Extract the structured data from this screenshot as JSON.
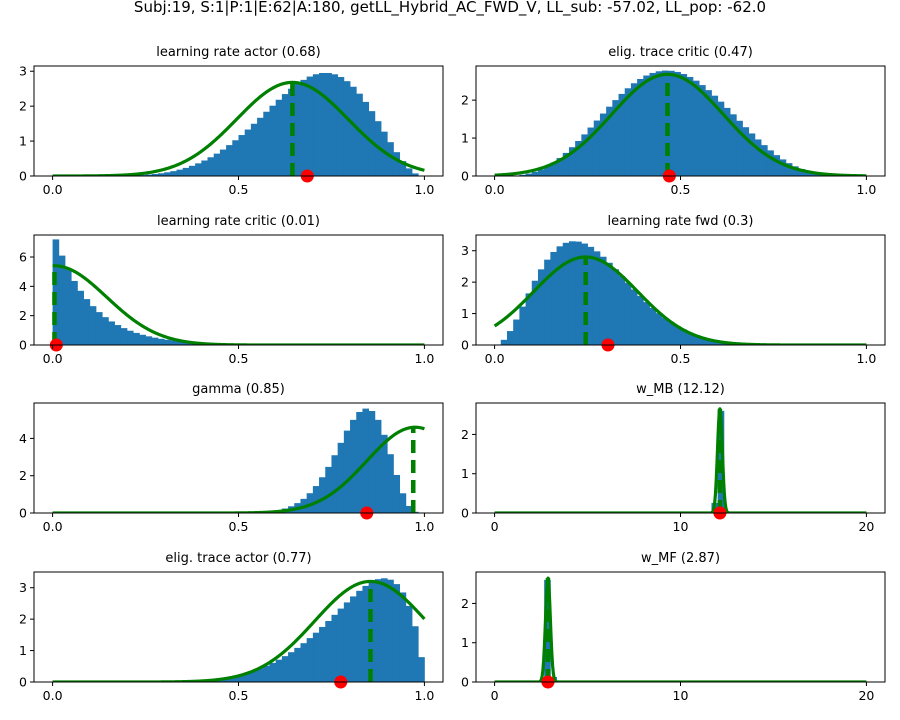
{
  "figure": {
    "title": "Subj:19, S:1|P:1|E:62|A:180, getLL_Hybrid_AC_FWD_V, LL_sub: -57.02, LL_pop: -62.0"
  },
  "colors": {
    "hist": "#1f77b4",
    "curve": "#008000",
    "mle": "#ff0000"
  },
  "chart_data": [
    {
      "type": "bar",
      "title": "learning rate actor (0.68)",
      "xlim": [
        -0.05,
        1.05
      ],
      "ylim": [
        0,
        3.15
      ],
      "xticks": [
        0,
        0.5,
        1
      ],
      "xtick_labels": [
        "0.0",
        "0.5",
        "1.0"
      ],
      "yticks": [
        0,
        1,
        2,
        3
      ],
      "ytick_labels": [
        "0",
        "1",
        "2",
        "3"
      ],
      "hist": {
        "range": [
          0,
          1
        ],
        "bins": 60,
        "shape": "beta",
        "mean": 0.69,
        "sd": 0.135,
        "peak": 2.95
      },
      "curve": {
        "shape": "gauss",
        "mu": 0.645,
        "sigma": 0.15,
        "peak": 2.68,
        "domain": [
          0,
          1
        ]
      },
      "vline": {
        "x": 0.645,
        "y": 2.68
      },
      "point": {
        "x": 0.685,
        "y": 0
      }
    },
    {
      "type": "bar",
      "title": "elig. trace critic (0.47)",
      "xlim": [
        -0.05,
        1.05
      ],
      "ylim": [
        0,
        2.9
      ],
      "xticks": [
        0,
        0.5,
        1
      ],
      "xtick_labels": [
        "0.0",
        "0.5",
        "1.0"
      ],
      "yticks": [
        0,
        1,
        2
      ],
      "ytick_labels": [
        "0",
        "1",
        "2"
      ],
      "hist": {
        "range": [
          0,
          1
        ],
        "bins": 60,
        "shape": "beta",
        "mean": 0.47,
        "sd": 0.15,
        "peak": 2.78
      },
      "curve": {
        "shape": "gauss",
        "mu": 0.465,
        "sigma": 0.15,
        "peak": 2.68,
        "domain": [
          0,
          1
        ]
      },
      "vline": {
        "x": 0.465,
        "y": 2.68
      },
      "point": {
        "x": 0.47,
        "y": 0
      }
    },
    {
      "type": "bar",
      "title": "learning rate critic (0.01)",
      "xlim": [
        -0.05,
        1.05
      ],
      "ylim": [
        0,
        7.5
      ],
      "xticks": [
        0,
        0.5,
        1
      ],
      "xtick_labels": [
        "0.0",
        "0.5",
        "1.0"
      ],
      "yticks": [
        0,
        2,
        4,
        6
      ],
      "ytick_labels": [
        "0",
        "2",
        "4",
        "6"
      ],
      "hist": {
        "range": [
          0,
          1
        ],
        "bins": 60,
        "shape": "expo",
        "scale": 0.1,
        "peak": 7.2
      },
      "curve": {
        "shape": "gauss",
        "mu": 0.005,
        "sigma": 0.14,
        "peak": 5.4,
        "domain": [
          0,
          1
        ]
      },
      "vline": {
        "x": 0.005,
        "y": 5.4
      },
      "point": {
        "x": 0.01,
        "y": 0
      }
    },
    {
      "type": "bar",
      "title": "learning rate fwd (0.3)",
      "xlim": [
        -0.05,
        1.05
      ],
      "ylim": [
        0,
        3.5
      ],
      "xticks": [
        0,
        0.5,
        1
      ],
      "xtick_labels": [
        "0.0",
        "0.5",
        "1.0"
      ],
      "yticks": [
        0,
        1,
        2,
        3
      ],
      "ytick_labels": [
        "0",
        "1",
        "2",
        "3"
      ],
      "hist": {
        "range": [
          0,
          1
        ],
        "bins": 60,
        "shape": "beta",
        "mean": 0.26,
        "sd": 0.12,
        "peak": 3.3
      },
      "curve": {
        "shape": "gauss",
        "mu": 0.245,
        "sigma": 0.14,
        "peak": 2.8,
        "domain": [
          0,
          1
        ]
      },
      "vline": {
        "x": 0.245,
        "y": 2.8
      },
      "point": {
        "x": 0.305,
        "y": 0
      }
    },
    {
      "type": "bar",
      "title": "gamma (0.85)",
      "xlim": [
        -0.05,
        1.05
      ],
      "ylim": [
        0,
        5.9
      ],
      "xticks": [
        0,
        0.5,
        1
      ],
      "xtick_labels": [
        "0.0",
        "0.5",
        "1.0"
      ],
      "yticks": [
        0,
        2,
        4
      ],
      "ytick_labels": [
        "0",
        "2",
        "4"
      ],
      "hist": {
        "range": [
          0,
          1
        ],
        "bins": 60,
        "shape": "beta",
        "mean": 0.82,
        "sd": 0.07,
        "peak": 5.6
      },
      "curve": {
        "shape": "gauss",
        "mu": 0.975,
        "sigma": 0.13,
        "peak": 4.6,
        "domain": [
          0,
          1
        ]
      },
      "vline": {
        "x": 0.97,
        "y": 4.6
      },
      "point": {
        "x": 0.845,
        "y": 0
      }
    },
    {
      "type": "bar",
      "title": "w_MB (12.12)",
      "xlim": [
        -1,
        21
      ],
      "ylim": [
        0,
        2.8
      ],
      "xticks": [
        0,
        10,
        20
      ],
      "xtick_labels": [
        "0",
        "10",
        "20"
      ],
      "yticks": [
        0,
        1,
        2
      ],
      "ytick_labels": [
        "0",
        "1",
        "2"
      ],
      "hist": {
        "range": [
          0,
          20
        ],
        "bins": 60,
        "shape": "gauss",
        "mu": 12.1,
        "sigma": 0.12,
        "peak": 2.6
      },
      "curve": {
        "shape": "gauss",
        "mu": 12.12,
        "sigma": 0.13,
        "peak": 2.65,
        "domain": [
          0,
          20
        ]
      },
      "vline": {
        "x": 12.12,
        "y": 2.65
      },
      "point": {
        "x": 12.12,
        "y": 0
      }
    },
    {
      "type": "bar",
      "title": "elig. trace actor (0.77)",
      "xlim": [
        -0.05,
        1.05
      ],
      "ylim": [
        0,
        3.5
      ],
      "xticks": [
        0,
        0.5,
        1
      ],
      "xtick_labels": [
        "0.0",
        "0.5",
        "1.0"
      ],
      "yticks": [
        0,
        1,
        2,
        3
      ],
      "ytick_labels": [
        "0",
        "1",
        "2",
        "3"
      ],
      "hist": {
        "range": [
          0,
          1
        ],
        "bins": 60,
        "shape": "beta",
        "mean": 0.81,
        "sd": 0.12,
        "peak": 3.3
      },
      "curve": {
        "shape": "gauss",
        "mu": 0.855,
        "sigma": 0.15,
        "peak": 3.2,
        "domain": [
          0,
          1
        ]
      },
      "vline": {
        "x": 0.855,
        "y": 3.2
      },
      "point": {
        "x": 0.775,
        "y": 0
      }
    },
    {
      "type": "bar",
      "title": "w_MF (2.87)",
      "xlim": [
        -1,
        21
      ],
      "ylim": [
        0,
        2.8
      ],
      "xticks": [
        0,
        10,
        20
      ],
      "xtick_labels": [
        "0",
        "10",
        "20"
      ],
      "yticks": [
        0,
        1,
        2
      ],
      "ytick_labels": [
        "0",
        "1",
        "2"
      ],
      "hist": {
        "range": [
          0,
          20
        ],
        "bins": 60,
        "shape": "gauss",
        "mu": 2.87,
        "sigma": 0.12,
        "peak": 2.6
      },
      "curve": {
        "shape": "gauss",
        "mu": 2.87,
        "sigma": 0.13,
        "peak": 2.65,
        "domain": [
          0,
          20
        ]
      },
      "vline": {
        "x": 2.87,
        "y": 2.65
      },
      "point": {
        "x": 2.87,
        "y": 0
      }
    }
  ]
}
